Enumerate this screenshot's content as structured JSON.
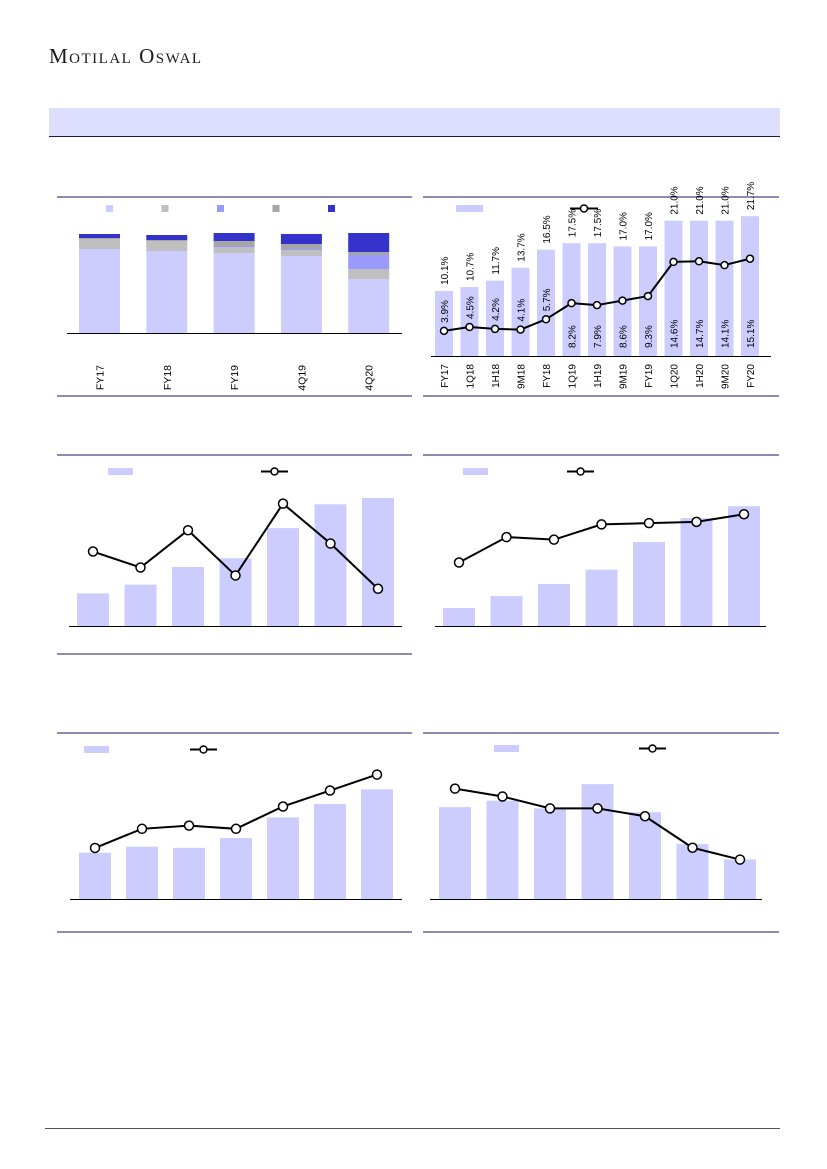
{
  "header": {
    "logo_text": "Motilal Oswal"
  },
  "colors": {
    "bar": "#ccccff",
    "grey": "#bfbfbf",
    "mid_blue": "#9999ff",
    "dark_grey": "#a6a6a6",
    "dark_blue": "#3333cc",
    "line": "#000000",
    "rule": "#1a1a66"
  },
  "chart_data": [
    {
      "id": "c1",
      "type": "bar",
      "stacked": true,
      "categories": [
        "FY17",
        "FY18",
        "FY19",
        "4Q19",
        "4Q20"
      ],
      "series": [
        {
          "color": "#ccccff",
          "values": [
            84,
            82,
            80,
            77,
            54
          ]
        },
        {
          "color": "#bfbfbf",
          "values": [
            10,
            10,
            6,
            6,
            10
          ]
        },
        {
          "color": "#9999ff",
          "values": [
            0,
            0,
            1,
            1,
            14
          ]
        },
        {
          "color": "#a6a6a6",
          "values": [
            1,
            1,
            5,
            5,
            3
          ]
        },
        {
          "color": "#3333cc",
          "values": [
            4,
            5,
            8,
            10,
            19
          ]
        }
      ],
      "ylim": [
        0,
        100
      ],
      "legend_position": "top"
    },
    {
      "id": "c2",
      "type": "bar+line",
      "categories": [
        "FY17",
        "1Q18",
        "1H18",
        "9M18",
        "FY18",
        "1Q19",
        "1H19",
        "9M19",
        "FY19",
        "1Q20",
        "1H20",
        "9M20",
        "FY20"
      ],
      "bars": [
        10.1,
        10.7,
        11.7,
        13.7,
        16.5,
        17.5,
        17.5,
        17.0,
        17.0,
        21.0,
        21.0,
        21.0,
        21.7
      ],
      "bar_labels": [
        "10.1%",
        "10.7%",
        "11.7%",
        "13.7%",
        "16.5%",
        "17.5%",
        "17.5%",
        "17.0%",
        "17.0%",
        "21.0%",
        "21.0%",
        "21.0%",
        "21.7%"
      ],
      "line": [
        3.9,
        4.5,
        4.2,
        4.1,
        5.7,
        8.2,
        7.9,
        8.6,
        9.3,
        14.6,
        14.7,
        14.1,
        15.1
      ],
      "line_labels": [
        "3.9%",
        "4.5%",
        "4.2%",
        "4.1%",
        "5.7%",
        "8.2%",
        "7.9%",
        "8.6%",
        "9.3%",
        "14.6%",
        "14.7%",
        "14.1%",
        "15.1%"
      ],
      "ylim": [
        0,
        22.5
      ]
    },
    {
      "id": "c3",
      "type": "bar+line",
      "bars": [
        26,
        33,
        47,
        54,
        78,
        97,
        102
      ],
      "line": [
        48,
        42,
        56,
        39,
        66,
        51,
        34
      ],
      "ylim_bars": [
        0,
        106
      ],
      "ylim_line": [
        20,
        70
      ]
    },
    {
      "id": "c4",
      "type": "bar+line",
      "bars": [
        15,
        25,
        35,
        47,
        70,
        90,
        100
      ],
      "line": [
        50,
        70,
        68,
        80,
        81,
        82,
        88
      ],
      "ylim_bars": [
        0,
        106
      ],
      "ylim_line": [
        0,
        100
      ]
    },
    {
      "id": "c5",
      "type": "bar+line",
      "bars": [
        38,
        43,
        42,
        50,
        67,
        78,
        90
      ],
      "line": [
        12,
        24,
        26,
        24,
        38,
        48,
        58
      ],
      "ylim_bars": [
        0,
        110
      ],
      "ylim_line": [
        -20,
        64
      ]
    },
    {
      "id": "c6",
      "type": "bar+line",
      "bars": [
        72,
        77,
        71,
        90,
        68,
        43,
        31
      ],
      "line": [
        38,
        36,
        33,
        33,
        31,
        23,
        20
      ],
      "ylim_bars": [
        0,
        105
      ],
      "ylim_line": [
        10,
        44
      ]
    }
  ]
}
